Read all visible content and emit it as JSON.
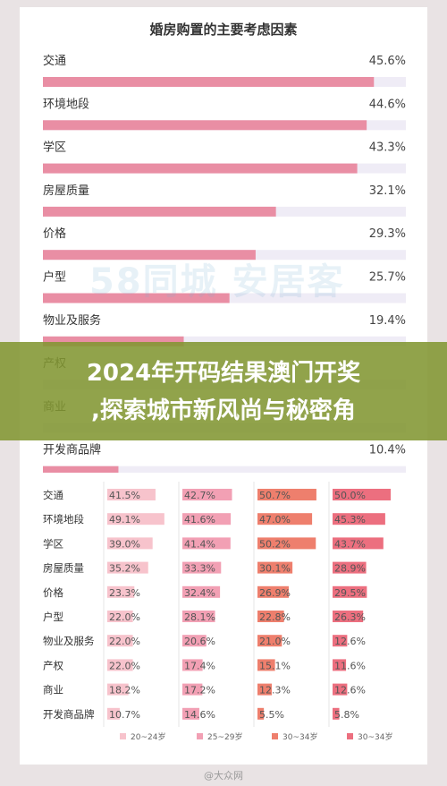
{
  "footer": {
    "source_label": "@大众网"
  },
  "banner": {
    "line1": "2024年开码结果澳门开奖",
    "line2": ",探索城市新风尚与秘密角"
  },
  "watermark": {
    "text": "58同城 安居客"
  },
  "chart_data": [
    {
      "type": "bar",
      "title": "婚房购置的主要考虑因素",
      "categories": [
        "交通",
        "环境地段",
        "学区",
        "房屋质量",
        "价格",
        "户型",
        "物业及服务",
        "产权",
        "商业",
        "开发商品牌"
      ],
      "values": [
        45.6,
        44.6,
        43.3,
        32.1,
        29.3,
        25.7,
        19.4,
        null,
        null,
        10.4
      ],
      "value_labels": [
        "45.6%",
        "44.6%",
        "43.3%",
        "32.1%",
        "29.3%",
        "25.7%",
        "19.4%",
        "",
        "",
        "10.4%"
      ],
      "xlim": [
        0,
        50
      ],
      "colors": {
        "bar": "#e98ea4",
        "track": "#efecf6"
      }
    },
    {
      "type": "bar",
      "categories": [
        "交通",
        "环境地段",
        "学区",
        "房屋质量",
        "价格",
        "户型",
        "物业及服务",
        "产权",
        "商业",
        "开发商品牌"
      ],
      "series": [
        {
          "name": "20~24岁",
          "color": "#f7c3cc",
          "values": [
            41.5,
            49.1,
            39.0,
            35.2,
            23.3,
            22.0,
            22.0,
            22.0,
            18.2,
            10.7
          ],
          "labels": [
            "41.5%",
            "49.1%",
            "39.0%",
            "35.2%",
            "23.3%",
            "22.0%",
            "22.0%",
            "22.0%",
            "18.2%",
            "10.7%"
          ]
        },
        {
          "name": "25~29岁",
          "color": "#f2a0b4",
          "values": [
            42.7,
            41.6,
            41.4,
            33.3,
            32.4,
            28.1,
            20.6,
            17.4,
            17.2,
            14.6
          ],
          "labels": [
            "42.7%",
            "41.6%",
            "41.4%",
            "33.3%",
            "32.4%",
            "28.1%",
            "20.6%",
            "17.4%",
            "17.2%",
            "14.6%"
          ]
        },
        {
          "name": "30~34岁",
          "color": "#ee7f6d",
          "values": [
            50.7,
            47.0,
            50.2,
            30.1,
            26.9,
            22.8,
            21.0,
            15.1,
            12.3,
            5.5
          ],
          "labels": [
            "50.7%",
            "47.0%",
            "50.2%",
            "30.1%",
            "26.9%",
            "22.8%",
            "21.0%",
            "15.1%",
            "12.3%",
            "5.5%"
          ]
        },
        {
          "name": "30~34岁",
          "color": "#ec6f7f",
          "values": [
            50.0,
            45.3,
            43.7,
            28.9,
            29.5,
            26.3,
            12.6,
            11.6,
            12.6,
            5.8
          ],
          "labels": [
            "50.0%",
            "45.3%",
            "43.7%",
            "28.9%",
            "29.5%",
            "26.3%",
            "12.6%",
            "11.6%",
            "12.6%",
            "5.8%"
          ]
        }
      ],
      "xlim": [
        0,
        60
      ],
      "legend_position": "bottom"
    }
  ]
}
